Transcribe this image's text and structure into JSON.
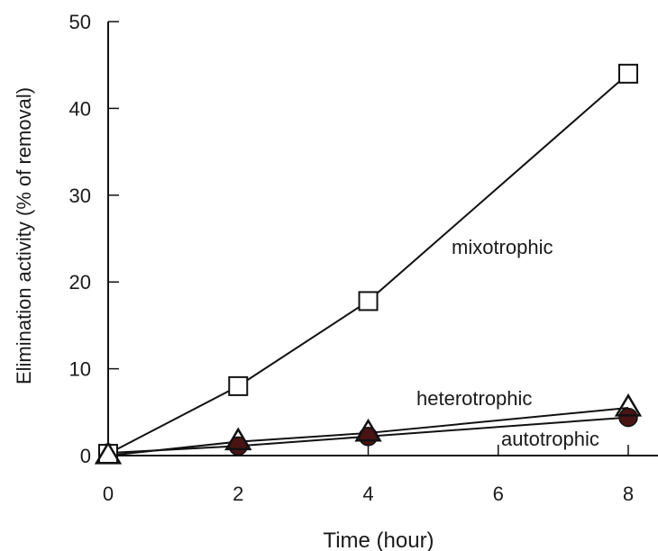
{
  "chart_data": {
    "type": "line",
    "xlabel": "Time (hour)",
    "ylabel": "Elimination activity (% of removal)",
    "xlim": [
      0,
      8
    ],
    "ylim": [
      0,
      50
    ],
    "xticks": [
      0,
      2,
      4,
      6,
      8
    ],
    "yticks": [
      0,
      10,
      20,
      30,
      40,
      50
    ],
    "x_tick_labels": [
      "0",
      "2",
      "4",
      "6",
      "8"
    ],
    "y_tick_labels": [
      "0",
      "10",
      "20",
      "30",
      "40",
      "50"
    ],
    "grid": false,
    "series": [
      {
        "name": "mixotrophic",
        "marker": "open-square",
        "x": [
          0,
          2,
          4,
          8
        ],
        "y": [
          0.2,
          8,
          17.8,
          44
        ]
      },
      {
        "name": "heterotrophic",
        "marker": "open-triangle",
        "x": [
          0,
          2,
          4,
          8
        ],
        "y": [
          0,
          1.6,
          2.6,
          5.5
        ]
      },
      {
        "name": "autotrophic",
        "marker": "filled-circle",
        "x": [
          0,
          2,
          4,
          8
        ],
        "y": [
          0.3,
          1.1,
          2.2,
          4.4
        ]
      }
    ],
    "annotations": {
      "mixotrophic": "mixotrophic",
      "heterotrophic": "heterotrophic",
      "autotrophic": "autotrophic"
    },
    "colors": {
      "line": "#111111",
      "circle_fill": "#4a1414",
      "background": "#ffffff"
    }
  }
}
